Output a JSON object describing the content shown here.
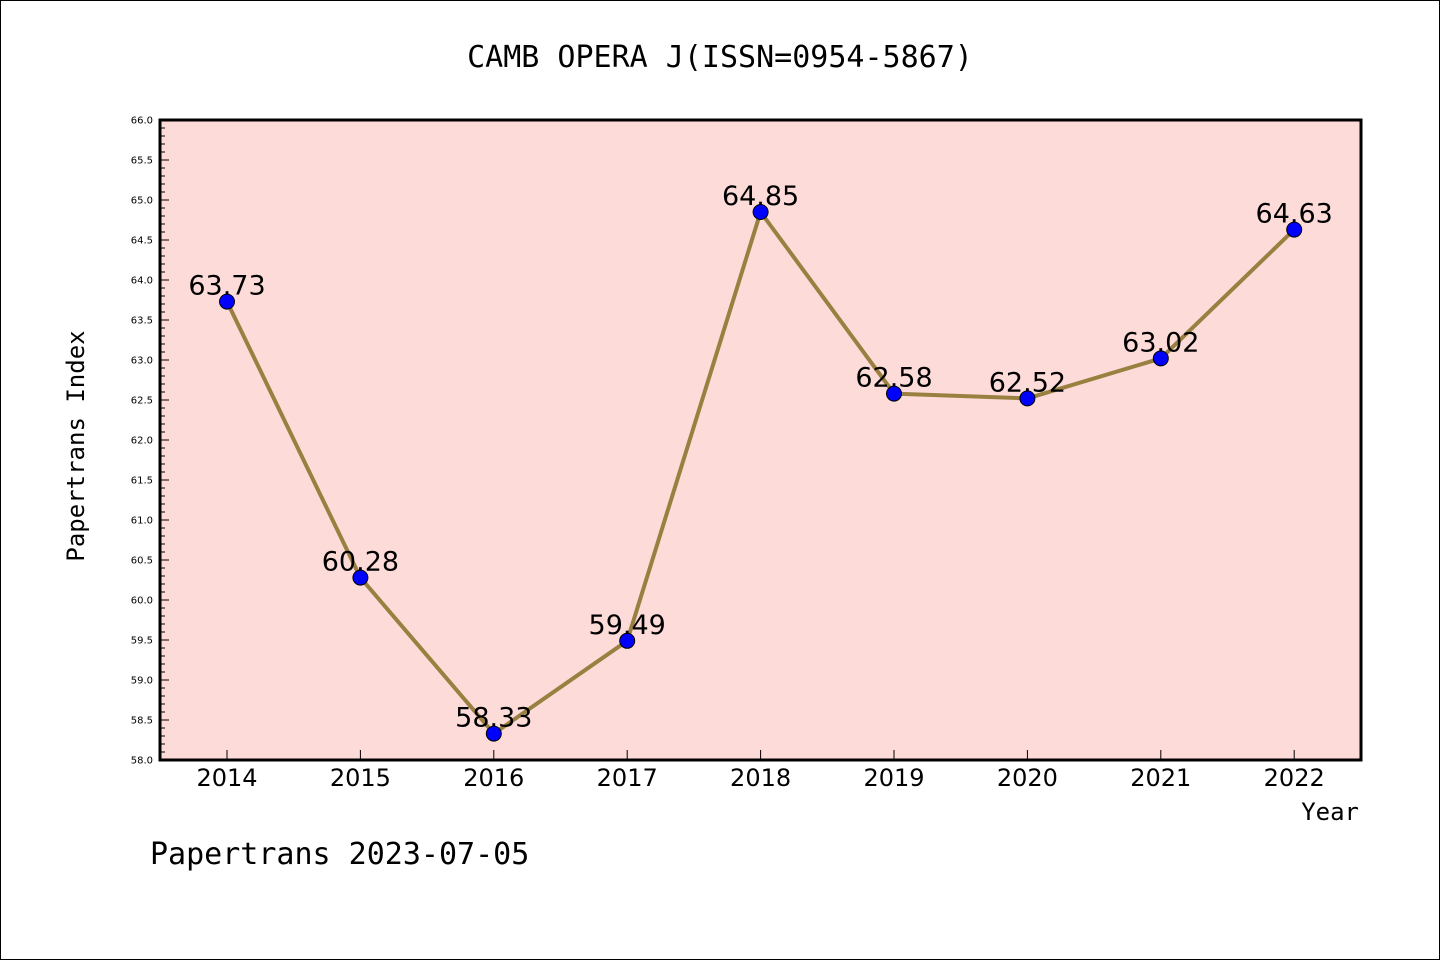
{
  "footer": "Papertrans 2023-07-05",
  "chart_data": {
    "type": "line",
    "title": "CAMB OPERA J(ISSN=0954-5867)",
    "xlabel": "Year",
    "ylabel": "Papertrans Index",
    "categories": [
      "2014",
      "2015",
      "2016",
      "2017",
      "2018",
      "2019",
      "2020",
      "2021",
      "2022"
    ],
    "series": [
      {
        "values": [
          63.73,
          60.28,
          58.33,
          59.49,
          64.85,
          62.58,
          62.52,
          63.02,
          64.63
        ],
        "labels": [
          "63.73",
          "60.28",
          "58.33",
          "59.49",
          "64.85",
          "62.58",
          "62.52",
          "63.02",
          "64.63"
        ]
      }
    ],
    "ylim": [
      58.0,
      66.0
    ],
    "yticks": [
      "58.0",
      "58.5",
      "59.0",
      "59.5",
      "60.0",
      "60.5",
      "61.0",
      "61.5",
      "62.0",
      "62.5",
      "63.0",
      "63.5",
      "64.0",
      "64.5",
      "65.0",
      "65.5",
      "66.0"
    ],
    "grid": false,
    "colors": {
      "plot_background": "#fddbd9",
      "line": "#9a8040",
      "marker": "#0000ff",
      "axes": "#000000"
    }
  }
}
